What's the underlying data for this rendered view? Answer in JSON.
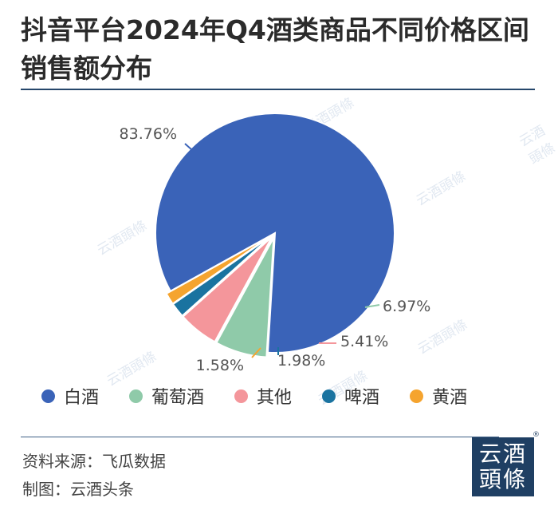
{
  "header": {
    "title": "抖音平台2024年Q4酒类商品不同价格区间销售额分布"
  },
  "chart_data": {
    "type": "pie",
    "title": "抖音平台2024年Q4酒类商品不同价格区间销售额分布",
    "slices": [
      {
        "name": "白酒",
        "value": 83.76,
        "label": "83.76%",
        "color": "#3a63b8"
      },
      {
        "name": "葡萄酒",
        "value": 6.97,
        "label": "6.97%",
        "color": "#8fcaa9"
      },
      {
        "name": "其他",
        "value": 5.41,
        "label": "5.41%",
        "color": "#f4969b"
      },
      {
        "name": "啤酒",
        "value": 1.98,
        "label": "1.98%",
        "color": "#1a73a0"
      },
      {
        "name": "黄酒",
        "value": 1.58,
        "label": "1.58%",
        "color": "#f5a42f"
      }
    ],
    "legend_position": "bottom"
  },
  "footer": {
    "source": "资料来源：飞瓜数据",
    "maker": "制图：云酒头条"
  },
  "logo": {
    "line1": "云酒",
    "line2": "頭條",
    "reg": "®"
  },
  "watermark": {
    "text": "云酒頭條"
  }
}
